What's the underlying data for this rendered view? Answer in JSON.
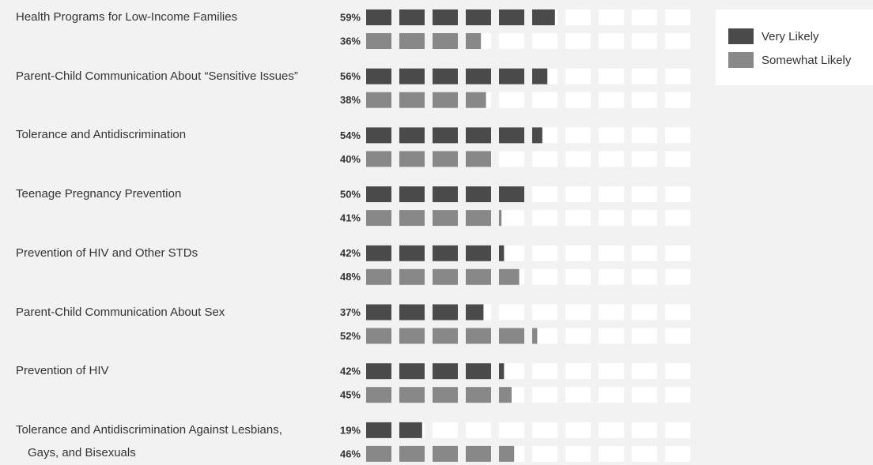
{
  "chart_data": {
    "type": "pictograph",
    "categories": [
      "Health Programs for Low-Income Families",
      "Parent-Child Communication About “Sensitive Issues”",
      "Tolerance and Antidiscrimination",
      "Teenage Pregnancy Prevention",
      "Prevention of HIV and Other STDs",
      "Parent-Child Communication About Sex",
      "Prevention of HIV",
      "Tolerance and Antidiscrimination Against Lesbians, Gays, and Bisexuals"
    ],
    "xlim": [
      0,
      100
    ],
    "series": [
      {
        "name": "Very Likely",
        "color": "#4a4a4a",
        "values": [
          59,
          56,
          54,
          50,
          42,
          37,
          42,
          19
        ],
        "value_labels": [
          "59%",
          "56%",
          "54%",
          "50%",
          "42%",
          "37%",
          "42%",
          "19%"
        ]
      },
      {
        "name": "Somewhat Likely",
        "color": "#888888",
        "values": [
          36,
          38,
          40,
          41,
          48,
          52,
          45,
          46
        ],
        "value_labels": [
          "36%",
          "38%",
          "40%",
          "41%",
          "48%",
          "52%",
          "45%",
          "46%"
        ]
      }
    ]
  }
}
